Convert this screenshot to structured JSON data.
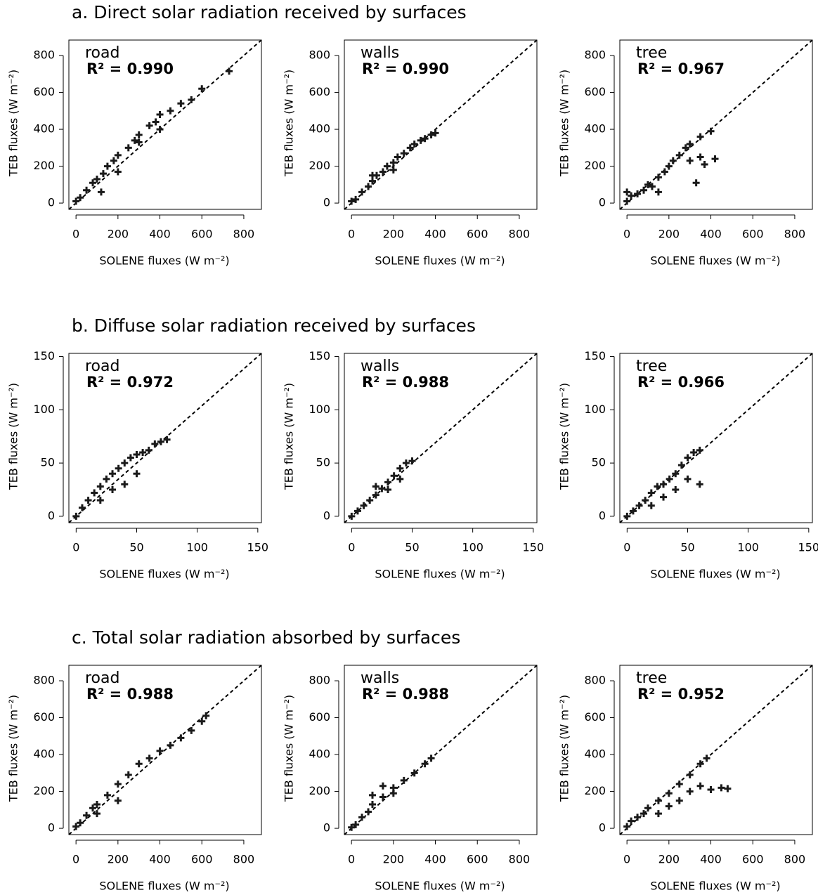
{
  "chart_data": [
    {
      "type": "scatter",
      "title": "a. Direct solar radiation received by surfaces",
      "annotations": [
        "road",
        "R² = 0.990"
      ],
      "xlabel": "SOLENE fluxes (W m⁻²)",
      "ylabel": "TEB fluxes (W m⁻²)",
      "color": "#1a1a1a",
      "x": [
        0,
        20,
        50,
        80,
        100,
        130,
        150,
        180,
        200,
        250,
        280,
        300,
        350,
        380,
        400,
        450,
        500,
        550,
        600,
        730,
        200,
        300,
        120,
        400
      ],
      "y": [
        10,
        30,
        70,
        110,
        130,
        160,
        200,
        230,
        260,
        300,
        340,
        370,
        420,
        440,
        480,
        500,
        540,
        560,
        620,
        715,
        170,
        330,
        60,
        400
      ],
      "xlim": [
        -34,
        884
      ],
      "ylim": [
        -34,
        884
      ],
      "xticks": [
        0,
        200,
        400,
        600,
        800
      ],
      "yticks": [
        0,
        200,
        400,
        600,
        800
      ]
    },
    {
      "type": "scatter",
      "annotations": [
        "walls",
        "R² = 0.990"
      ],
      "xlabel": "SOLENE fluxes (W m⁻²)",
      "ylabel": "TEB fluxes (W m⁻²)",
      "color": "#1a1a1a",
      "x": [
        0,
        20,
        50,
        80,
        100,
        120,
        150,
        170,
        200,
        220,
        250,
        280,
        300,
        330,
        350,
        380,
        400,
        100,
        200
      ],
      "y": [
        10,
        20,
        60,
        90,
        120,
        150,
        170,
        200,
        220,
        250,
        270,
        300,
        320,
        340,
        350,
        370,
        380,
        150,
        180
      ],
      "xlim": [
        -34,
        884
      ],
      "ylim": [
        -34,
        884
      ],
      "xticks": [
        0,
        200,
        400,
        600,
        800
      ],
      "yticks": [
        0,
        200,
        400,
        600,
        800
      ]
    },
    {
      "type": "scatter",
      "annotations": [
        "tree",
        "R² = 0.967"
      ],
      "xlabel": "SOLENE fluxes (W m⁻²)",
      "ylabel": "TEB fluxes (W m⁻²)",
      "color": "#1a1a1a",
      "x": [
        0,
        0,
        20,
        50,
        80,
        100,
        120,
        150,
        180,
        200,
        220,
        250,
        280,
        300,
        350,
        400,
        300,
        350,
        420,
        370,
        330,
        150
      ],
      "y": [
        10,
        60,
        40,
        50,
        70,
        100,
        90,
        140,
        170,
        200,
        230,
        260,
        300,
        320,
        360,
        390,
        230,
        250,
        240,
        210,
        110,
        60
      ],
      "xlim": [
        -34,
        884
      ],
      "ylim": [
        -34,
        884
      ],
      "xticks": [
        0,
        200,
        400,
        600,
        800
      ],
      "yticks": [
        0,
        200,
        400,
        600,
        800
      ]
    },
    {
      "type": "scatter",
      "title": "b. Diffuse solar radiation received by surfaces",
      "annotations": [
        "road",
        "R² = 0.972"
      ],
      "xlabel": "SOLENE fluxes (W m⁻²)",
      "ylabel": "TEB fluxes (W m⁻²)",
      "color": "#1a1a1a",
      "x": [
        0,
        5,
        10,
        15,
        20,
        25,
        30,
        35,
        40,
        45,
        50,
        55,
        60,
        65,
        70,
        75,
        30,
        40,
        50,
        20
      ],
      "y": [
        0,
        8,
        15,
        22,
        28,
        35,
        40,
        45,
        50,
        55,
        58,
        60,
        62,
        68,
        70,
        72,
        25,
        30,
        40,
        15
      ],
      "xlim": [
        -6,
        153
      ],
      "ylim": [
        -6,
        153
      ],
      "xticks": [
        0,
        50,
        100,
        150
      ],
      "yticks": [
        0,
        50,
        100,
        150
      ]
    },
    {
      "type": "scatter",
      "annotations": [
        "walls",
        "R² = 0.988"
      ],
      "xlabel": "SOLENE fluxes (W m⁻²)",
      "ylabel": "TEB fluxes (W m⁻²)",
      "color": "#1a1a1a",
      "x": [
        0,
        5,
        10,
        15,
        20,
        25,
        30,
        35,
        40,
        45,
        50,
        30,
        40,
        20
      ],
      "y": [
        0,
        5,
        10,
        15,
        20,
        26,
        32,
        38,
        45,
        50,
        52,
        25,
        35,
        28
      ],
      "xlim": [
        -6,
        153
      ],
      "ylim": [
        -6,
        153
      ],
      "xticks": [
        0,
        50,
        100,
        150
      ],
      "yticks": [
        0,
        50,
        100,
        150
      ]
    },
    {
      "type": "scatter",
      "annotations": [
        "tree",
        "R² = 0.966"
      ],
      "xlabel": "SOLENE fluxes (W m⁻²)",
      "ylabel": "TEB fluxes (W m⁻²)",
      "color": "#1a1a1a",
      "x": [
        0,
        5,
        10,
        15,
        20,
        25,
        30,
        35,
        40,
        45,
        50,
        55,
        60,
        50,
        60,
        40,
        30,
        20
      ],
      "y": [
        0,
        5,
        10,
        15,
        22,
        28,
        30,
        35,
        40,
        48,
        55,
        60,
        62,
        35,
        30,
        25,
        18,
        10
      ],
      "xlim": [
        -6,
        153
      ],
      "ylim": [
        -6,
        153
      ],
      "xticks": [
        0,
        50,
        100,
        150
      ],
      "yticks": [
        0,
        50,
        100,
        150
      ]
    },
    {
      "type": "scatter",
      "title": "c. Total solar radiation absorbed by surfaces",
      "annotations": [
        "road",
        "R² = 0.988"
      ],
      "xlabel": "SOLENE fluxes (W m⁻²)",
      "ylabel": "TEB fluxes (W m⁻²)",
      "color": "#1a1a1a",
      "x": [
        0,
        20,
        50,
        80,
        100,
        150,
        200,
        250,
        300,
        350,
        400,
        450,
        500,
        550,
        600,
        620,
        200,
        100
      ],
      "y": [
        10,
        30,
        70,
        110,
        130,
        180,
        240,
        290,
        350,
        380,
        420,
        450,
        490,
        530,
        580,
        610,
        150,
        80
      ],
      "xlim": [
        -34,
        884
      ],
      "ylim": [
        -34,
        884
      ],
      "xticks": [
        0,
        200,
        400,
        600,
        800
      ],
      "yticks": [
        0,
        200,
        400,
        600,
        800
      ]
    },
    {
      "type": "scatter",
      "annotations": [
        "walls",
        "R² = 0.988"
      ],
      "xlabel": "SOLENE fluxes (W m⁻²)",
      "ylabel": "TEB fluxes (W m⁻²)",
      "color": "#1a1a1a",
      "x": [
        0,
        20,
        50,
        80,
        100,
        150,
        200,
        250,
        300,
        350,
        380,
        100,
        150,
        200
      ],
      "y": [
        5,
        20,
        60,
        90,
        130,
        170,
        220,
        260,
        300,
        350,
        380,
        180,
        230,
        190
      ],
      "xlim": [
        -34,
        884
      ],
      "ylim": [
        -34,
        884
      ],
      "xticks": [
        0,
        200,
        400,
        600,
        800
      ],
      "yticks": [
        0,
        200,
        400,
        600,
        800
      ]
    },
    {
      "type": "scatter",
      "annotations": [
        "tree",
        "R² = 0.952"
      ],
      "xlabel": "SOLENE fluxes (W m⁻²)",
      "ylabel": "TEB fluxes (W m⁻²)",
      "color": "#1a1a1a",
      "x": [
        0,
        20,
        50,
        80,
        100,
        150,
        200,
        250,
        300,
        350,
        380,
        300,
        350,
        400,
        450,
        480,
        250,
        200,
        150
      ],
      "y": [
        10,
        40,
        60,
        80,
        110,
        150,
        190,
        240,
        290,
        350,
        380,
        200,
        230,
        210,
        220,
        215,
        150,
        120,
        80
      ],
      "xlim": [
        -34,
        884
      ],
      "ylim": [
        -34,
        884
      ],
      "xticks": [
        0,
        200,
        400,
        600,
        800
      ],
      "yticks": [
        0,
        200,
        400,
        600,
        800
      ]
    }
  ]
}
